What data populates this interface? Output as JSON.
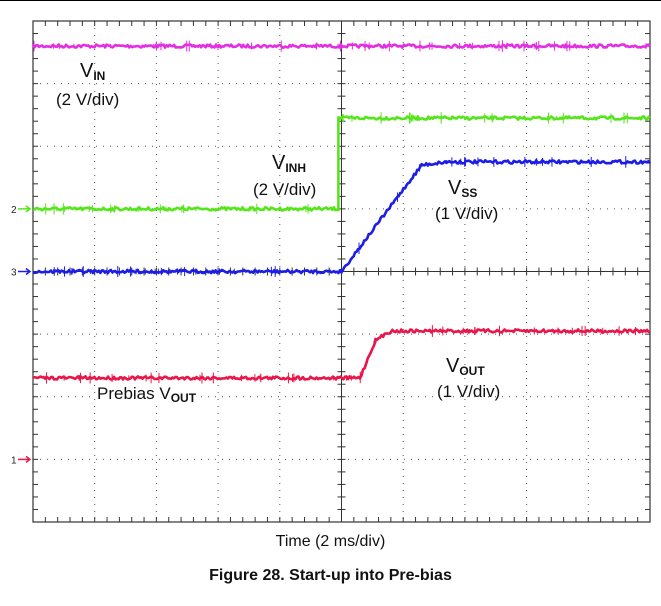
{
  "chart_data": {
    "type": "line",
    "title": "Figure 28. Start-up into Pre-bias",
    "xlabel": "Time (2 ms/div)",
    "x_divisions": 10,
    "y_divisions": 8,
    "channel_markers": [
      "2",
      "3",
      "1"
    ],
    "series": [
      {
        "name": "VIN",
        "scale": "(2 V/div)",
        "color": "#e32ee3",
        "points": [
          [
            0,
            7.6
          ],
          [
            10,
            7.6
          ]
        ]
      },
      {
        "name": "VINH",
        "scale": "(2 V/div)",
        "color": "#55e61a",
        "points": [
          [
            0,
            5.0
          ],
          [
            4.95,
            5.0
          ],
          [
            4.95,
            6.45
          ],
          [
            10,
            6.45
          ]
        ]
      },
      {
        "name": "VSS",
        "scale": "(1 V/div)",
        "color": "#1d1de6",
        "points": [
          [
            0,
            4.0
          ],
          [
            5.0,
            4.0
          ],
          [
            6.3,
            5.7
          ],
          [
            6.7,
            5.75
          ],
          [
            10,
            5.75
          ]
        ]
      },
      {
        "name": "VOUT",
        "scale": "(1 V/div)",
        "color": "#e8164a",
        "points": [
          [
            0,
            2.3
          ],
          [
            5.3,
            2.3
          ],
          [
            5.55,
            2.9
          ],
          [
            5.8,
            3.05
          ],
          [
            10,
            3.05
          ]
        ]
      }
    ]
  },
  "labels": {
    "vin": {
      "main": "V",
      "sub": "IN",
      "scale": "(2 V/div)"
    },
    "vinh": {
      "main": "V",
      "sub": "INH",
      "scale": "(2 V/div)"
    },
    "vss": {
      "main": "V",
      "sub": "SS",
      "scale": "(1 V/div)"
    },
    "vout": {
      "main": "V",
      "sub": "OUT",
      "scale": "(1 V/div)"
    },
    "prebias": {
      "prefix": "Prebias V",
      "sub": "OUT"
    }
  },
  "colors": {
    "grid": "#333333",
    "dots": "#555555"
  }
}
